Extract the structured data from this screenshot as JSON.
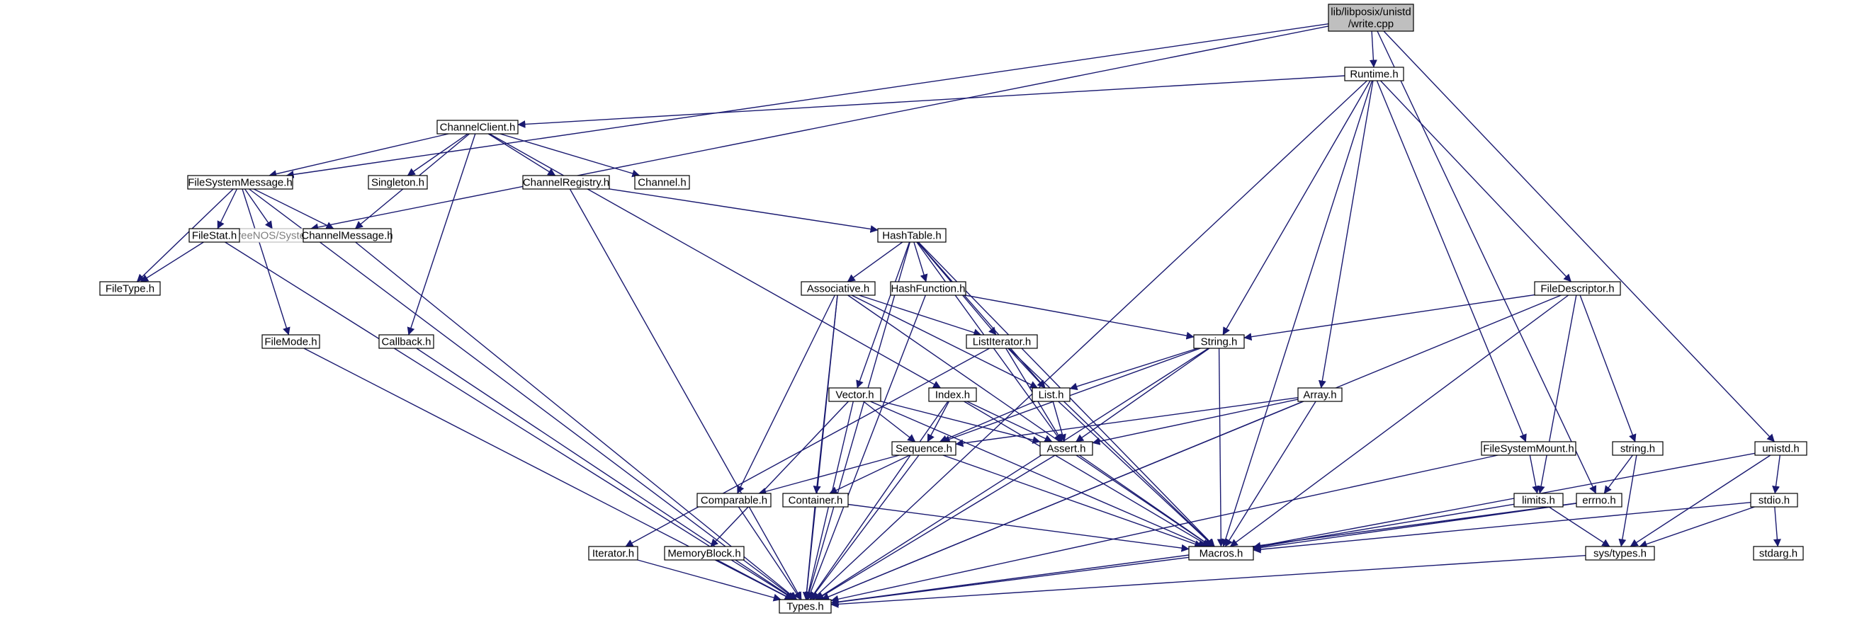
{
  "edge_color": "#191970",
  "root_fill": "#bfbfbf",
  "nodes": {
    "root": [
      "lib/libposix/unistd",
      "/write.cpp"
    ],
    "runtime": "Runtime.h",
    "channelclient": "ChannelClient.h",
    "filesystemmessage": "FileSystemMessage.h",
    "system": "FreeNOS/System.h",
    "singleton": "Singleton.h",
    "channelregistry": "ChannelRegistry.h",
    "channel": "Channel.h",
    "filestat": "FileStat.h",
    "channelmessage": "ChannelMessage.h",
    "filetype": "FileType.h",
    "hashtable": "HashTable.h",
    "associative": "Associative.h",
    "hashfunction": "HashFunction.h",
    "filedescriptor": "FileDescriptor.h",
    "filemode": "FileMode.h",
    "callback": "Callback.h",
    "listiterator": "ListIterator.h",
    "string": "String.h",
    "index": "Index.h",
    "list": "List.h",
    "vector": "Vector.h",
    "array": "Array.h",
    "sequence": "Sequence.h",
    "assert": "Assert.h",
    "filesystemmount": "FileSystemMount.h",
    "stringh": "string.h",
    "unistd": "unistd.h",
    "comparable": "Comparable.h",
    "container": "Container.h",
    "limits": "limits.h",
    "errno": "errno.h",
    "stdio": "stdio.h",
    "iterator": "Iterator.h",
    "memoryblock": "MemoryBlock.h",
    "macros": "Macros.h",
    "systypes": "sys/types.h",
    "stdarg": "stdarg.h",
    "types": "Types.h"
  }
}
